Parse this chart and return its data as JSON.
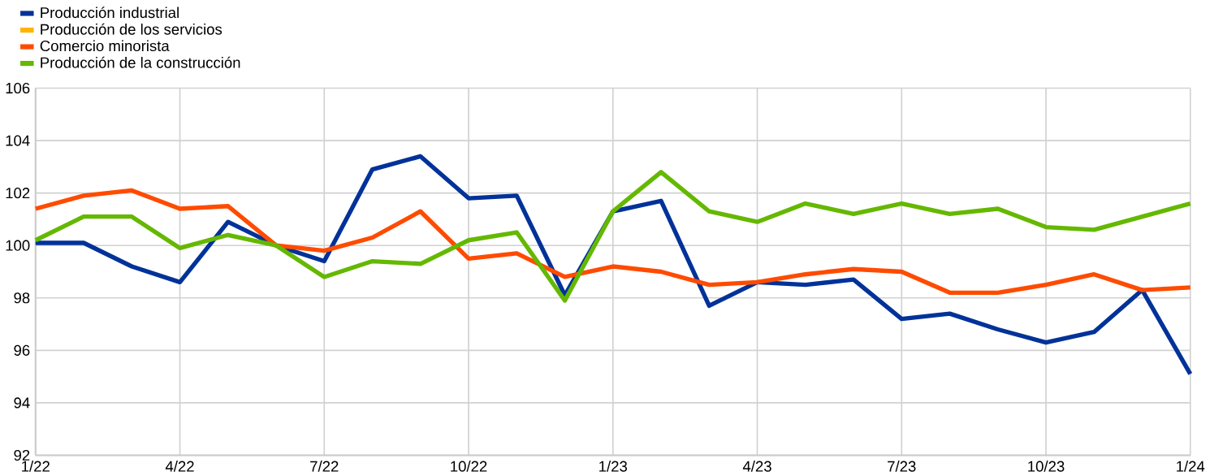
{
  "chart_data": {
    "type": "line",
    "categories": [
      "1/22",
      null,
      null,
      "4/22",
      null,
      null,
      "7/22",
      null,
      null,
      "10/22",
      null,
      null,
      "1/23",
      null,
      null,
      "4/23",
      null,
      null,
      "7/23",
      null,
      null,
      "10/23",
      null,
      null,
      "1/24"
    ],
    "series": [
      {
        "name": "Producción industrial",
        "color": "#003299",
        "values": [
          100.1,
          100.1,
          99.2,
          98.6,
          100.9,
          100.0,
          99.4,
          102.9,
          103.4,
          101.8,
          101.9,
          98.1,
          101.3,
          101.7,
          97.7,
          98.6,
          98.5,
          98.7,
          97.2,
          97.4,
          96.8,
          96.3,
          96.7,
          98.3,
          95.1
        ]
      },
      {
        "name": "Producción de los servicios",
        "color": "#ffb400",
        "values": [
          null,
          null,
          null,
          null,
          null,
          null,
          null,
          null,
          null,
          null,
          null,
          null,
          null,
          null,
          null,
          null,
          null,
          null,
          null,
          null,
          null,
          null,
          null,
          null,
          null
        ]
      },
      {
        "name": "Comercio minorista",
        "color": "#ff4b00",
        "values": [
          101.4,
          101.9,
          102.1,
          101.4,
          101.5,
          100.0,
          99.8,
          100.3,
          101.3,
          99.5,
          99.7,
          98.8,
          99.2,
          99.0,
          98.5,
          98.6,
          98.9,
          99.1,
          99.0,
          98.2,
          98.2,
          98.5,
          98.9,
          98.3,
          98.4
        ]
      },
      {
        "name": "Producción de la construcción",
        "color": "#65b800",
        "values": [
          100.2,
          101.1,
          101.1,
          99.9,
          100.4,
          100.0,
          98.8,
          99.4,
          99.3,
          100.2,
          100.5,
          97.9,
          101.3,
          102.8,
          101.3,
          100.9,
          101.6,
          101.2,
          101.6,
          101.2,
          101.4,
          100.7,
          100.6,
          101.1,
          101.6
        ]
      }
    ],
    "ylim": [
      92,
      106
    ],
    "yticks": [
      92,
      94,
      96,
      98,
      100,
      102,
      104,
      106
    ],
    "grid": true,
    "legend": "top left",
    "marker": "none",
    "line_style": "solid"
  }
}
